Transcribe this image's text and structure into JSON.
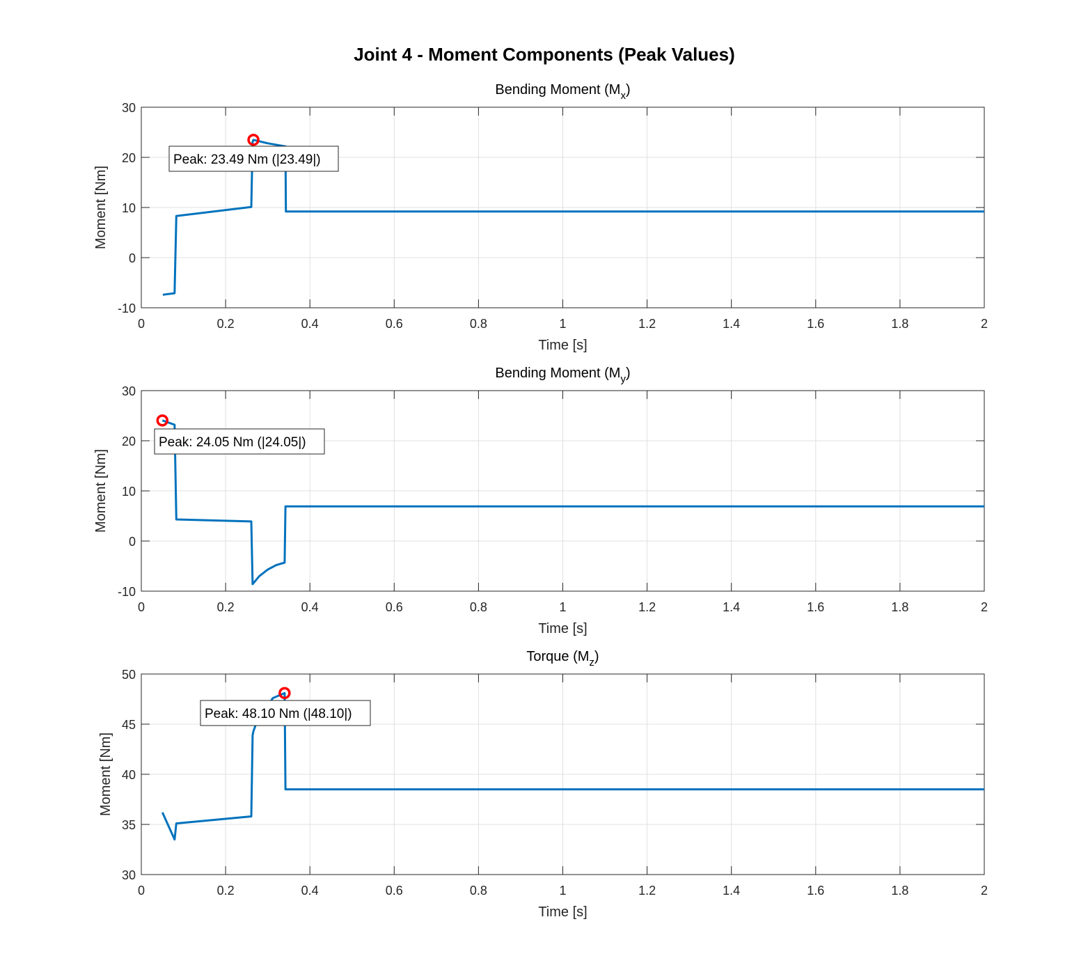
{
  "figure_title": "Joint 4 - Moment Components (Peak Values)",
  "colors": {
    "line": "#0072BD",
    "peak_marker": "#FF0000",
    "grid": "#e0e0e0",
    "axis": "#262626"
  },
  "chart_data": [
    {
      "type": "line",
      "title_main": "Bending Moment (M",
      "title_sub": "x",
      "title_end": ")",
      "xlabel": "Time [s]",
      "ylabel": "Moment [Nm]",
      "xlim": [
        0,
        2
      ],
      "ylim": [
        -10,
        30
      ],
      "xticks": [
        0,
        0.2,
        0.4,
        0.6,
        0.8,
        1,
        1.2,
        1.4,
        1.6,
        1.8,
        2
      ],
      "yticks": [
        -10,
        0,
        10,
        20,
        30
      ],
      "grid": true,
      "x": [
        0.051,
        0.079,
        0.083,
        0.261,
        0.264,
        0.266,
        0.3,
        0.342,
        0.343,
        2.0
      ],
      "y": [
        -7.4,
        -7.1,
        8.3,
        10.1,
        23.1,
        23.49,
        22.8,
        22.2,
        9.2,
        9.2
      ],
      "peak": {
        "x": 0.266,
        "y": 23.49,
        "label": "Peak: 23.49 Nm (|23.49|)"
      }
    },
    {
      "type": "line",
      "title_main": "Bending Moment (M",
      "title_sub": "y",
      "title_end": ")",
      "xlabel": "Time [s]",
      "ylabel": "Moment [Nm]",
      "xlim": [
        0,
        2
      ],
      "ylim": [
        -10,
        30
      ],
      "xticks": [
        0,
        0.2,
        0.4,
        0.6,
        0.8,
        1,
        1.2,
        1.4,
        1.6,
        1.8,
        2
      ],
      "yticks": [
        -10,
        0,
        10,
        20,
        30
      ],
      "grid": true,
      "x": [
        0.05,
        0.079,
        0.083,
        0.261,
        0.264,
        0.28,
        0.3,
        0.32,
        0.34,
        0.342,
        2.0
      ],
      "y": [
        24.05,
        23.2,
        4.3,
        3.9,
        -8.6,
        -7.0,
        -5.7,
        -4.8,
        -4.3,
        6.9,
        6.9
      ],
      "peak": {
        "x": 0.05,
        "y": 24.05,
        "label": "Peak: 24.05 Nm (|24.05|)"
      }
    },
    {
      "type": "line",
      "title_main": "Torque (M",
      "title_sub": "z",
      "title_end": ")",
      "xlabel": "Time [s]",
      "ylabel": "Moment [Nm]",
      "xlim": [
        0,
        2
      ],
      "ylim": [
        30,
        50
      ],
      "xticks": [
        0,
        0.2,
        0.4,
        0.6,
        0.8,
        1,
        1.2,
        1.4,
        1.6,
        1.8,
        2
      ],
      "yticks": [
        30,
        35,
        40,
        45,
        50
      ],
      "grid": true,
      "x": [
        0.05,
        0.079,
        0.083,
        0.261,
        0.264,
        0.266,
        0.272,
        0.312,
        0.34,
        0.342,
        2.0
      ],
      "y": [
        36.2,
        33.5,
        35.1,
        35.8,
        43.9,
        44.3,
        45.0,
        47.6,
        48.1,
        38.5,
        38.5
      ],
      "peak": {
        "x": 0.34,
        "y": 48.1,
        "label": "Peak: 48.10 Nm (|48.10|)"
      }
    }
  ]
}
